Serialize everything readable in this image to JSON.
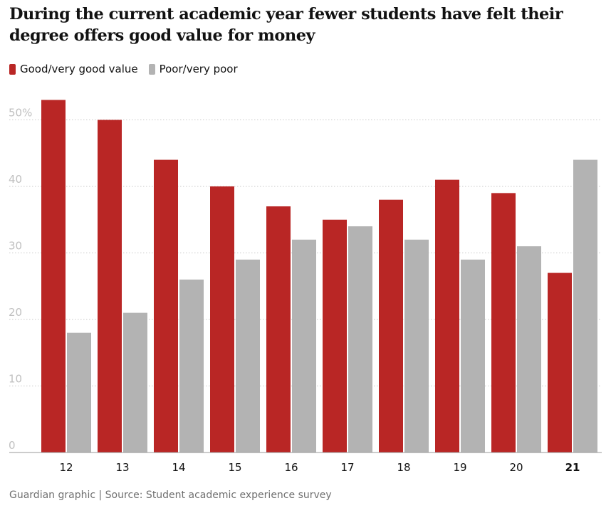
{
  "title": "During the current academic year fewer students have felt their degree offers good value for money",
  "legend": {
    "good_label": "Good/very good value",
    "poor_label": "Poor/very poor"
  },
  "colors": {
    "good": "#b92625",
    "poor": "#b3b3b3",
    "grid": "#c8c8c8",
    "axis_text": "#c0c0c0",
    "category_text": "#121212"
  },
  "source": "Guardian graphic | Source: Student academic experience survey",
  "chart_data": {
    "type": "bar",
    "title": "During the current academic year fewer students have felt their degree offers good value for money",
    "xlabel": "",
    "ylabel": "",
    "ylim": [
      0,
      52
    ],
    "yticks": [
      0,
      10,
      20,
      30,
      40,
      50
    ],
    "ytick_labels": [
      "0",
      "10",
      "20",
      "30",
      "40",
      "50%"
    ],
    "categories": [
      "12",
      "13",
      "14",
      "15",
      "16",
      "17",
      "18",
      "19",
      "20",
      "21"
    ],
    "highlight_category": "21",
    "series": [
      {
        "name": "Good/very good value",
        "values": [
          53,
          50,
          44,
          40,
          37,
          35,
          38,
          41,
          39,
          27
        ]
      },
      {
        "name": "Poor/very poor",
        "values": [
          18,
          21,
          26,
          29,
          32,
          34,
          32,
          29,
          31,
          44
        ]
      }
    ],
    "grid": true,
    "legend_position": "top-left"
  }
}
